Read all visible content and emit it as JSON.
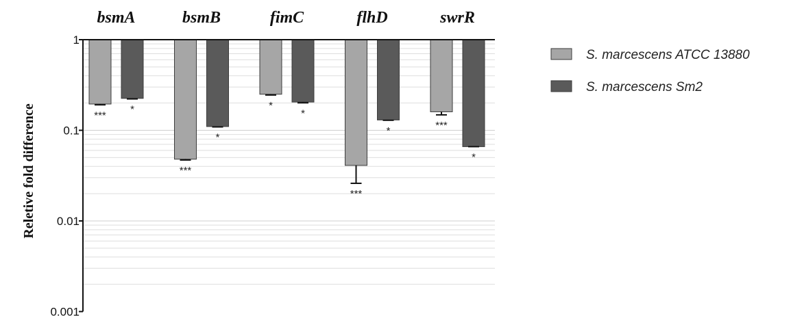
{
  "chart_data": {
    "type": "bar",
    "title": "",
    "xlabel": "",
    "ylabel": "Reletive fold difference",
    "yscale": "log",
    "ylim": [
      0.001,
      1
    ],
    "yticks": [
      {
        "value": 1,
        "label": "1"
      },
      {
        "value": 0.1,
        "label": "0.1"
      },
      {
        "value": 0.01,
        "label": "0.01"
      },
      {
        "value": 0.001,
        "label": "0.001"
      }
    ],
    "grid": true,
    "legend_position": "right",
    "categories": [
      "bsmA",
      "bsmB",
      "fimC",
      "flhD",
      "swrR"
    ],
    "series": [
      {
        "name": "S. marcescens ATCC 13880",
        "color": "#a6a6a6",
        "values": [
          0.195,
          0.048,
          0.25,
          0.041,
          0.16
        ],
        "error_low": [
          0.191,
          0.047,
          0.245,
          0.026,
          0.148
        ],
        "error_high": [
          0.195,
          0.048,
          0.25,
          0.041,
          0.16
        ],
        "significance": [
          "***",
          "***",
          "*",
          "***",
          "***"
        ]
      },
      {
        "name": "S. marcescens Sm2",
        "color": "#5a5a5a",
        "values": [
          0.225,
          0.11,
          0.205,
          0.13,
          0.066
        ],
        "error_low": [
          0.222,
          0.109,
          0.201,
          0.129,
          0.066
        ],
        "error_high": [
          0.225,
          0.11,
          0.205,
          0.13,
          0.066
        ],
        "significance": [
          "*",
          "*",
          "*",
          "*",
          "*"
        ]
      }
    ]
  }
}
